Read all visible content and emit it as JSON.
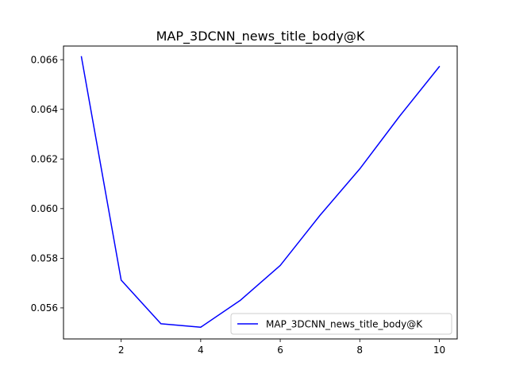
{
  "chart_data": {
    "type": "line",
    "title": "MAP_3DCNN_news_title_body@K",
    "xlabel": "",
    "ylabel": "",
    "xlim": [
      0.55,
      10.45
    ],
    "ylim": [
      0.05475,
      0.06655
    ],
    "x_ticks": [
      2,
      4,
      6,
      8,
      10
    ],
    "x_tick_labels": [
      "2",
      "4",
      "6",
      "8",
      "10"
    ],
    "y_ticks": [
      0.056,
      0.058,
      0.06,
      0.062,
      0.064,
      0.066
    ],
    "y_tick_labels": [
      "0.056",
      "0.058",
      "0.060",
      "0.062",
      "0.064",
      "0.066"
    ],
    "grid": false,
    "legend_position": "lower-right",
    "series": [
      {
        "name": "MAP_3DCNN_news_title_body@K",
        "color": "#0000ff",
        "x": [
          1,
          2,
          3,
          4,
          5,
          6,
          7,
          8,
          9,
          10
        ],
        "y": [
          0.06612,
          0.05712,
          0.05536,
          0.05522,
          0.05631,
          0.05771,
          0.05973,
          0.0616,
          0.06372,
          0.06572
        ]
      }
    ]
  }
}
